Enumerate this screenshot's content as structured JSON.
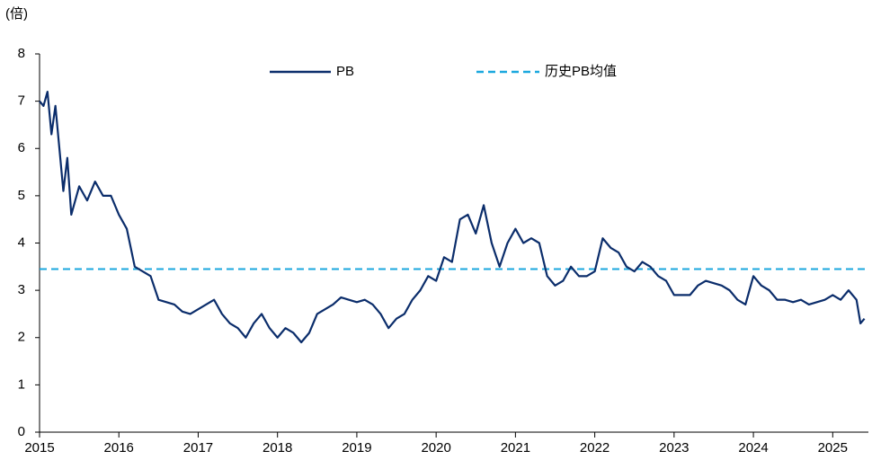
{
  "chart_data": {
    "type": "line",
    "y_unit_label": "(倍)",
    "x": [
      2015.0,
      2015.05,
      2015.1,
      2015.15,
      2015.2,
      2015.25,
      2015.3,
      2015.35,
      2015.4,
      2015.5,
      2015.6,
      2015.7,
      2015.8,
      2015.9,
      2016.0,
      2016.1,
      2016.15,
      2016.2,
      2016.3,
      2016.4,
      2016.5,
      2016.6,
      2016.7,
      2016.8,
      2016.9,
      2017.0,
      2017.1,
      2017.2,
      2017.3,
      2017.4,
      2017.5,
      2017.6,
      2017.7,
      2017.8,
      2017.9,
      2018.0,
      2018.1,
      2018.2,
      2018.3,
      2018.4,
      2018.5,
      2018.6,
      2018.7,
      2018.8,
      2018.9,
      2019.0,
      2019.1,
      2019.2,
      2019.3,
      2019.4,
      2019.5,
      2019.6,
      2019.7,
      2019.8,
      2019.9,
      2020.0,
      2020.1,
      2020.2,
      2020.3,
      2020.4,
      2020.5,
      2020.6,
      2020.7,
      2020.8,
      2020.9,
      2021.0,
      2021.1,
      2021.2,
      2021.3,
      2021.4,
      2021.5,
      2021.6,
      2021.7,
      2021.8,
      2021.9,
      2022.0,
      2022.1,
      2022.2,
      2022.3,
      2022.4,
      2022.5,
      2022.6,
      2022.7,
      2022.8,
      2022.9,
      2023.0,
      2023.1,
      2023.2,
      2023.3,
      2023.4,
      2023.5,
      2023.6,
      2023.7,
      2023.8,
      2023.9,
      2024.0,
      2024.1,
      2024.2,
      2024.3,
      2024.4,
      2024.5,
      2024.6,
      2024.7,
      2024.8,
      2024.9,
      2025.0,
      2025.1,
      2025.2,
      2025.3,
      2025.35,
      2025.4
    ],
    "series": [
      {
        "name": "PB",
        "color": "#0b2d6b",
        "values": [
          7.0,
          6.9,
          7.2,
          6.3,
          6.9,
          6.0,
          5.1,
          5.8,
          4.6,
          5.2,
          4.9,
          5.3,
          5.0,
          5.0,
          4.6,
          4.3,
          3.9,
          3.5,
          3.4,
          3.3,
          2.8,
          2.75,
          2.7,
          2.55,
          2.5,
          2.6,
          2.7,
          2.8,
          2.5,
          2.3,
          2.2,
          2.0,
          2.3,
          2.5,
          2.2,
          2.0,
          2.2,
          2.1,
          1.9,
          2.1,
          2.5,
          2.6,
          2.7,
          2.85,
          2.8,
          2.75,
          2.8,
          2.7,
          2.5,
          2.2,
          2.4,
          2.5,
          2.8,
          3.0,
          3.3,
          3.2,
          3.7,
          3.6,
          4.5,
          4.6,
          4.2,
          4.8,
          4.0,
          3.5,
          4.0,
          4.3,
          4.0,
          4.1,
          4.0,
          3.3,
          3.1,
          3.2,
          3.5,
          3.3,
          3.3,
          3.4,
          4.1,
          3.9,
          3.8,
          3.5,
          3.4,
          3.6,
          3.5,
          3.3,
          3.2,
          2.9,
          2.9,
          2.9,
          3.1,
          3.2,
          3.15,
          3.1,
          3.0,
          2.8,
          2.7,
          3.3,
          3.1,
          3.0,
          2.8,
          2.8,
          2.75,
          2.8,
          2.7,
          2.75,
          2.8,
          2.9,
          2.8,
          3.0,
          2.8,
          2.3,
          2.4
        ]
      }
    ],
    "hlines": [
      {
        "name": "历史PB均值",
        "value": 3.45,
        "color": "#1aa7de",
        "dashed": true
      }
    ],
    "xlim": [
      2015,
      2025.45
    ],
    "xticks": [
      2015,
      2016,
      2017,
      2018,
      2019,
      2020,
      2021,
      2022,
      2023,
      2024,
      2025
    ],
    "ylim": [
      0,
      8
    ],
    "yticks": [
      0,
      1,
      2,
      3,
      4,
      5,
      6,
      7,
      8
    ],
    "grid": false
  }
}
